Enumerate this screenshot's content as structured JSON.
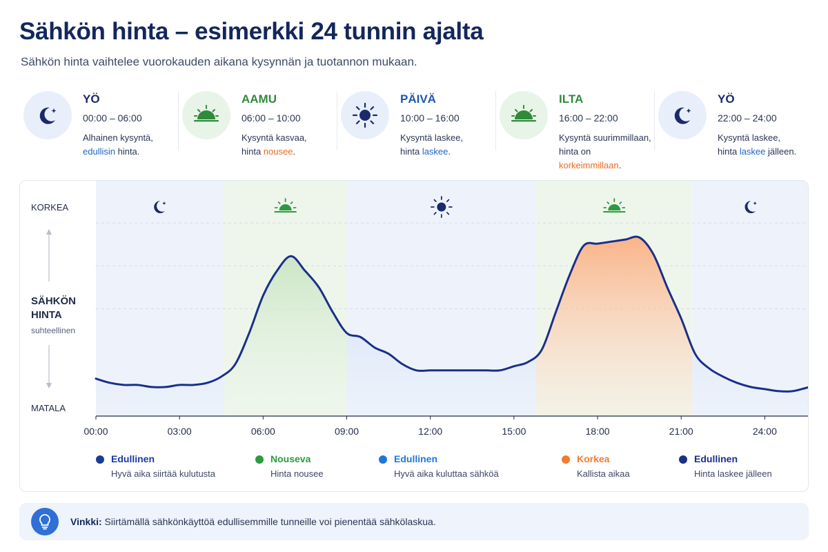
{
  "header": {
    "title": "Sähkön hinta – esimerkki 24 tunnin ajalta",
    "subtitle": "Sähkön hinta vaihtelee vuorokauden aikana kysynnän ja tuotannon mukaan."
  },
  "periods": [
    {
      "name": "YÖ",
      "time": "00:00 – 06:00",
      "desc1": "Alhainen kysyntä,",
      "desc2_hl": "edullisin",
      "desc2_rest": " hinta.",
      "desc2_pre": "",
      "icon": "moon-icon"
    },
    {
      "name": "AAMU",
      "time": "06:00 – 10:00",
      "desc1": "Kysyntä kasvaa,",
      "desc2_pre": "hinta ",
      "desc2_hl": "nousee",
      "desc2_rest": ".",
      "icon": "sunrise-icon"
    },
    {
      "name": "PÄIVÄ",
      "time": "10:00 – 16:00",
      "desc1": "Kysyntä laskee,",
      "desc2_pre": "hinta ",
      "desc2_hl": "laskee",
      "desc2_rest": ".",
      "icon": "sun-icon"
    },
    {
      "name": "ILTA",
      "time": "16:00 – 22:00",
      "desc1": "Kysyntä suurimmillaan,",
      "desc2_pre": "hinta on ",
      "desc2_hl": "korkeimmillaan",
      "desc2_rest": ".",
      "icon": "sunset-icon"
    },
    {
      "name": "YÖ",
      "time": "22:00 – 24:00",
      "desc1": "Kysyntä laskee,",
      "desc2_pre": "hinta ",
      "desc2_hl": "laskee",
      "desc2_rest": " jälleen.",
      "icon": "moon-icon"
    }
  ],
  "y_axis": {
    "high": "KORKEA",
    "title_line1": "SÄHKÖN",
    "title_line2": "HINTA",
    "subtitle": "suhteellinen",
    "low": "MATALA"
  },
  "chart_data": {
    "type": "area",
    "xlabel": "",
    "ylabel": "SÄHKÖN HINTA",
    "x_ticks": [
      "00:00",
      "03:00",
      "06:00",
      "09:00",
      "12:00",
      "15:00",
      "18:00",
      "21:00",
      "24:00"
    ],
    "xlim": [
      0,
      25.6
    ],
    "ylim": [
      0,
      100
    ],
    "y_scale_note": "suhteellinen",
    "grid": "horizontal dashed",
    "x": [
      0,
      0.5,
      1,
      1.5,
      2,
      2.5,
      3,
      3.5,
      4,
      4.5,
      5,
      5.5,
      6,
      6.5,
      7,
      7.5,
      8,
      8.5,
      9,
      9.5,
      10,
      10.5,
      11,
      11.5,
      12,
      12.5,
      13,
      13.5,
      14,
      14.5,
      15,
      15.5,
      16,
      16.5,
      17,
      17.5,
      18,
      18.5,
      19,
      19.5,
      20,
      20.5,
      21,
      21.5,
      22,
      22.5,
      23,
      23.5,
      24,
      24.5,
      25,
      25.6
    ],
    "values": [
      18,
      16,
      15,
      15,
      14,
      14,
      15,
      15,
      16,
      19,
      25,
      40,
      58,
      70,
      77,
      70,
      62,
      50,
      40,
      38,
      33,
      30,
      25,
      22,
      22,
      22,
      22,
      22,
      22,
      22,
      24,
      26,
      32,
      50,
      68,
      82,
      83,
      84,
      85,
      86,
      78,
      62,
      47,
      30,
      23,
      19,
      16,
      14,
      13,
      12,
      12,
      14
    ],
    "bands": [
      {
        "from": 0,
        "to": 4.6,
        "period": "Yö",
        "icon": "moon-icon"
      },
      {
        "from": 4.6,
        "to": 9.0,
        "period": "Aamu",
        "icon": "sunrise-icon"
      },
      {
        "from": 9.0,
        "to": 15.8,
        "period": "Päivä",
        "icon": "sun-icon"
      },
      {
        "from": 15.8,
        "to": 21.4,
        "period": "Ilta",
        "icon": "sunset-icon"
      },
      {
        "from": 21.4,
        "to": 25.6,
        "period": "Yö",
        "icon": "moon-icon"
      }
    ],
    "legend": [
      {
        "name": "Edullinen",
        "desc": "Hyvä aika siirtää kulutusta",
        "color": "#1a3b9c"
      },
      {
        "name": "Nouseva",
        "desc": "Hinta nousee",
        "color": "#2d9a3e"
      },
      {
        "name": "Edullinen",
        "desc": "Hyvä aika kuluttaa sähköä",
        "color": "#1f78d6"
      },
      {
        "name": "Korkea",
        "desc": "Kallista aikaa",
        "color": "#f47a2d"
      },
      {
        "name": "Edullinen",
        "desc": "Hinta laskee jälleen",
        "color": "#1a2f8a"
      }
    ]
  },
  "tip": {
    "label": "Vinkki:",
    "text": " Siirtämällä sähkönkäyttöä edullisemmille tunneille voi pienentää sähkölaskua.",
    "icon": "lightbulb-icon"
  },
  "colors": {
    "navy": "#1a2a6c",
    "green": "#2f8a3a",
    "blue": "#1f64c8",
    "orange": "#ef6a1e"
  }
}
